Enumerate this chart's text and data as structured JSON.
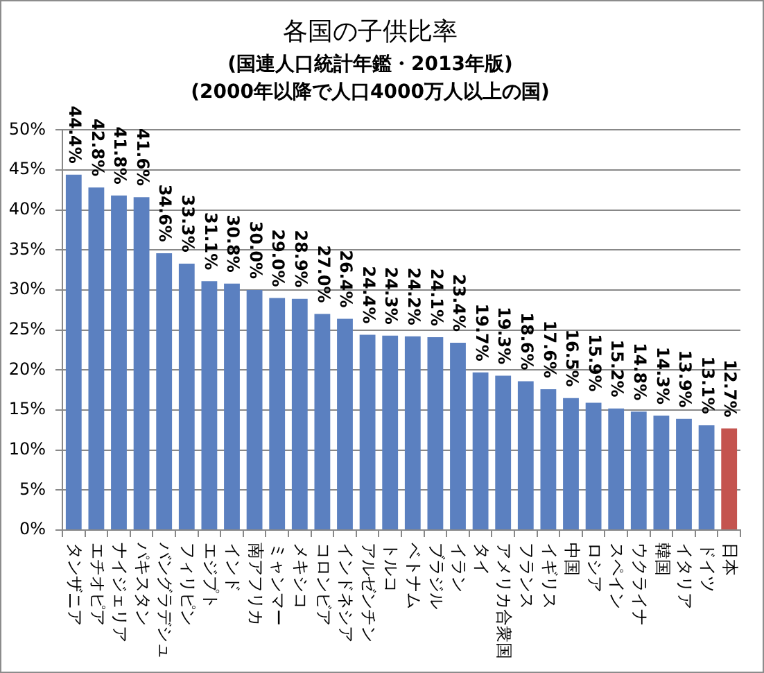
{
  "chart_data": {
    "type": "bar",
    "title": "各国の子供比率",
    "subtitle": "(国連人口統計年鑑・2013年版)\n(2000年以降で人口4000万人以上の国)",
    "categories": [
      "タンザニア",
      "エチオピア",
      "ナイジェリア",
      "パキスタン",
      "バングラデシュ",
      "フィリピン",
      "エジプト",
      "インド",
      "南アフリカ",
      "ミャンマー",
      "メキシコ",
      "コロンビア",
      "インドネシア",
      "アルゼンチン",
      "トルコ",
      "ベトナム",
      "ブラジル",
      "イラン",
      "タイ",
      "アメリカ合衆国",
      "フランス",
      "イギリス",
      "中国",
      "ロシア",
      "スペイン",
      "ウクライナ",
      "韓国",
      "イタリア",
      "ドイツ",
      "日本"
    ],
    "values": [
      44.4,
      42.8,
      41.8,
      41.6,
      34.6,
      33.3,
      31.1,
      30.8,
      30.0,
      29.0,
      28.9,
      27.0,
      26.4,
      24.4,
      24.3,
      24.2,
      24.1,
      23.4,
      19.7,
      19.3,
      18.6,
      17.6,
      16.5,
      15.9,
      15.2,
      14.8,
      14.3,
      13.9,
      13.1,
      12.7
    ],
    "value_labels": [
      "44.4%",
      "42.8%",
      "41.8%",
      "41.6%",
      "34.6%",
      "33.3%",
      "31.1%",
      "30.8%",
      "30.0%",
      "29.0%",
      "28.9%",
      "27.0%",
      "26.4%",
      "24.4%",
      "24.3%",
      "24.2%",
      "24.1%",
      "23.4%",
      "19.7%",
      "19.3%",
      "18.6%",
      "17.6%",
      "16.5%",
      "15.9%",
      "15.2%",
      "14.8%",
      "14.3%",
      "13.9%",
      "13.1%",
      "12.7%"
    ],
    "colors": [
      "#5b80c0",
      "#5b80c0",
      "#5b80c0",
      "#5b80c0",
      "#5b80c0",
      "#5b80c0",
      "#5b80c0",
      "#5b80c0",
      "#5b80c0",
      "#5b80c0",
      "#5b80c0",
      "#5b80c0",
      "#5b80c0",
      "#5b80c0",
      "#5b80c0",
      "#5b80c0",
      "#5b80c0",
      "#5b80c0",
      "#5b80c0",
      "#5b80c0",
      "#5b80c0",
      "#5b80c0",
      "#5b80c0",
      "#5b80c0",
      "#5b80c0",
      "#5b80c0",
      "#5b80c0",
      "#5b80c0",
      "#5b80c0",
      "#c4544f"
    ],
    "ylim": [
      0,
      50
    ],
    "yticks": [
      {
        "value": 0,
        "label": "0%"
      },
      {
        "value": 5,
        "label": "5%"
      },
      {
        "value": 10,
        "label": "10%"
      },
      {
        "value": 15,
        "label": "15%"
      },
      {
        "value": 20,
        "label": "20%"
      },
      {
        "value": 25,
        "label": "25%"
      },
      {
        "value": 30,
        "label": "30%"
      },
      {
        "value": 35,
        "label": "35%"
      },
      {
        "value": 40,
        "label": "40%"
      },
      {
        "value": 45,
        "label": "45%"
      },
      {
        "value": 50,
        "label": "50%"
      }
    ],
    "grid": "y"
  }
}
